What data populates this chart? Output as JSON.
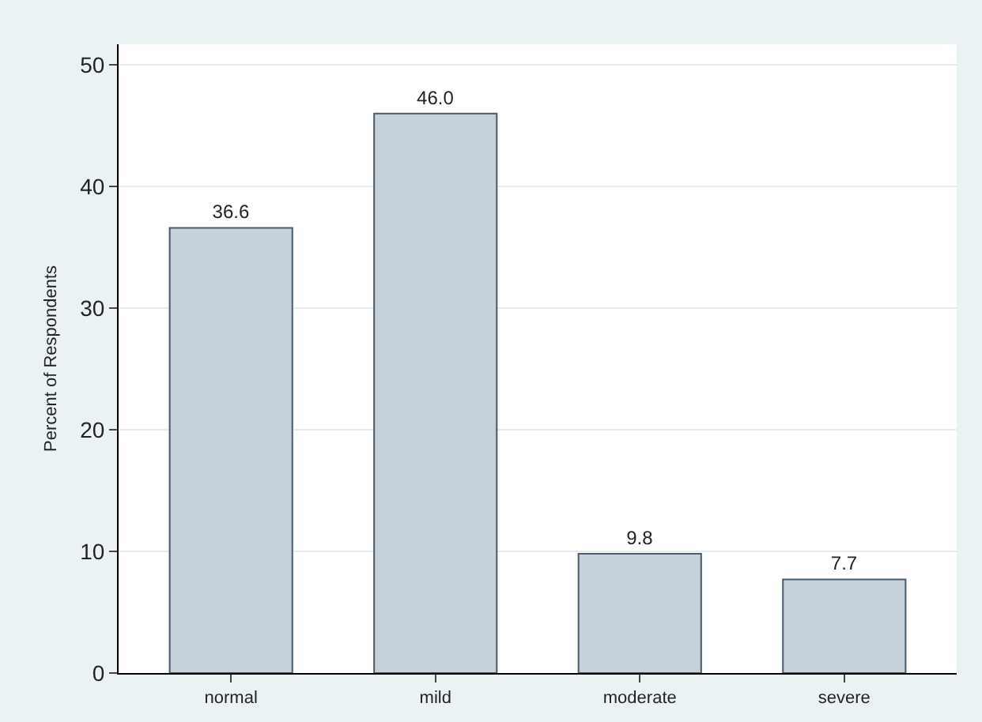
{
  "chart_data": {
    "type": "bar",
    "ylabel": "Percent of Respondents",
    "categories": [
      "normal",
      "mild",
      "moderate",
      "severe"
    ],
    "values": [
      36.6,
      46.0,
      9.8,
      7.7
    ],
    "value_labels": [
      "36.6",
      "46.0",
      "9.8",
      "7.7"
    ],
    "color": "#c7d1dc",
    "ylim": [
      0,
      51.7
    ],
    "yticks": [
      0,
      10,
      20,
      30,
      40,
      50
    ],
    "grid": "y",
    "legend": false
  }
}
